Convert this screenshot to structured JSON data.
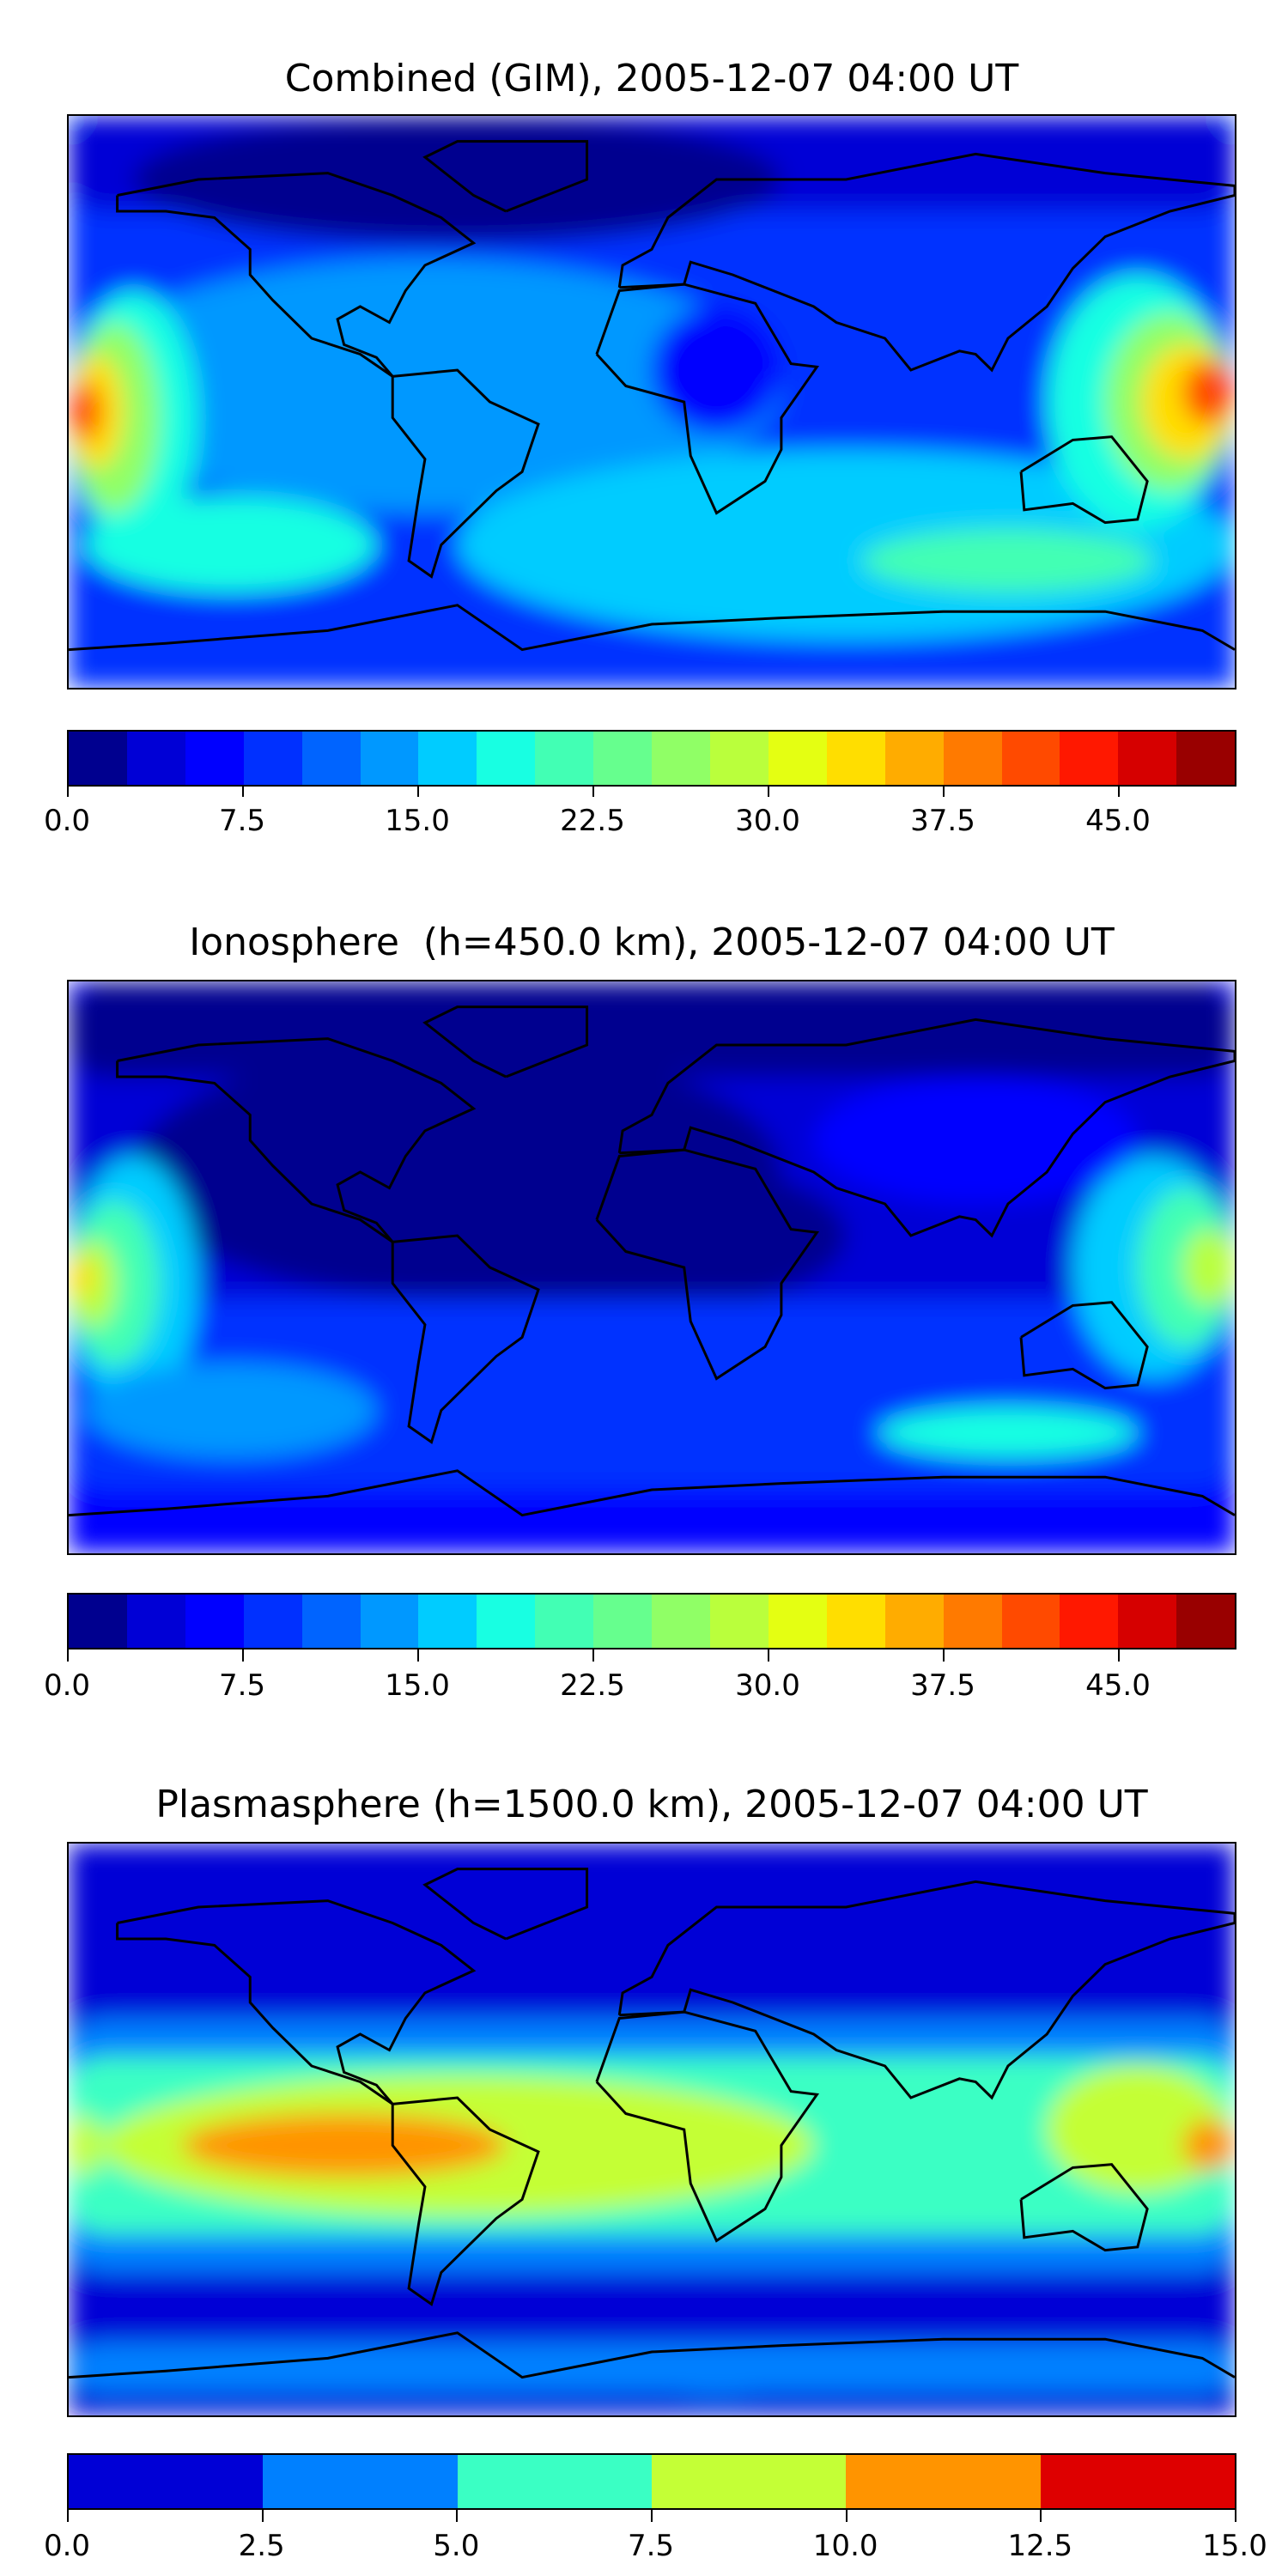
{
  "chart_data": [
    {
      "type": "heatmap",
      "title": "Combined (GIM), 2005-12-07 04:00 UT",
      "levels": [
        0,
        2.5,
        5,
        7.5,
        10,
        12.5,
        15,
        17.5,
        20,
        22.5,
        25,
        27.5,
        30,
        32.5,
        35,
        37.5,
        40,
        42.5,
        45,
        47.5,
        50
      ],
      "colors": [
        "#00008f",
        "#0000d6",
        "#0000ff",
        "#0030ff",
        "#0064ff",
        "#0098ff",
        "#00ccff",
        "#18ffe2",
        "#42ffb4",
        "#66ff8e",
        "#90ff66",
        "#baff3c",
        "#e4ff12",
        "#ffde00",
        "#ffac00",
        "#ff7a00",
        "#ff4a00",
        "#ff1800",
        "#d60000",
        "#990000"
      ],
      "ticks": [
        "0.0",
        "7.5",
        "15.0",
        "22.5",
        "30.0",
        "37.5",
        "45.0"
      ],
      "tick_values": [
        0,
        7.5,
        15,
        22.5,
        30,
        37.5,
        45
      ],
      "range": [
        0,
        50
      ],
      "features": "high TEC ~40-45 near equator at 180°W and 150-180°E; low in northern high latitudes"
    },
    {
      "type": "heatmap",
      "title": "Ionosphere  (h=450.0 km), 2005-12-07 04:00 UT",
      "levels": [
        0,
        2.5,
        5,
        7.5,
        10,
        12.5,
        15,
        17.5,
        20,
        22.5,
        25,
        27.5,
        30,
        32.5,
        35,
        37.5,
        40,
        42.5,
        45,
        47.5,
        50
      ],
      "colors": [
        "#00008f",
        "#0000d6",
        "#0000ff",
        "#0030ff",
        "#0064ff",
        "#0098ff",
        "#00ccff",
        "#18ffe2",
        "#42ffb4",
        "#66ff8e",
        "#90ff66",
        "#baff3c",
        "#e4ff12",
        "#ffde00",
        "#ffac00",
        "#ff7a00",
        "#ff4a00",
        "#ff1800",
        "#d60000",
        "#990000"
      ],
      "ticks": [
        "0.0",
        "7.5",
        "15.0",
        "22.5",
        "30.0",
        "37.5",
        "45.0"
      ],
      "tick_values": [
        0,
        7.5,
        15,
        22.5,
        30,
        37.5,
        45
      ],
      "range": [
        0,
        50
      ],
      "features": "peak ~32-35 near equator at 180°W and 170°E; very low over Americas/Atlantic/Africa"
    },
    {
      "type": "heatmap",
      "title": "Plasmasphere (h=1500.0 km), 2005-12-07 04:00 UT",
      "levels": [
        0,
        2.5,
        5,
        7.5,
        10,
        12.5,
        15
      ],
      "colors": [
        "#0000d6",
        "#0080ff",
        "#3affc4",
        "#c4ff36",
        "#ff9400",
        "#de0000"
      ],
      "ticks": [
        "0.0",
        "2.5",
        "5.0",
        "7.5",
        "10.0",
        "12.5",
        "15.0"
      ],
      "tick_values": [
        0,
        2.5,
        5,
        7.5,
        10,
        12.5,
        15
      ],
      "range": [
        0,
        15
      ],
      "features": "10-12.5 band over eastern Pacific/South America and west Pacific; 0-2.5 at high latitudes"
    }
  ]
}
